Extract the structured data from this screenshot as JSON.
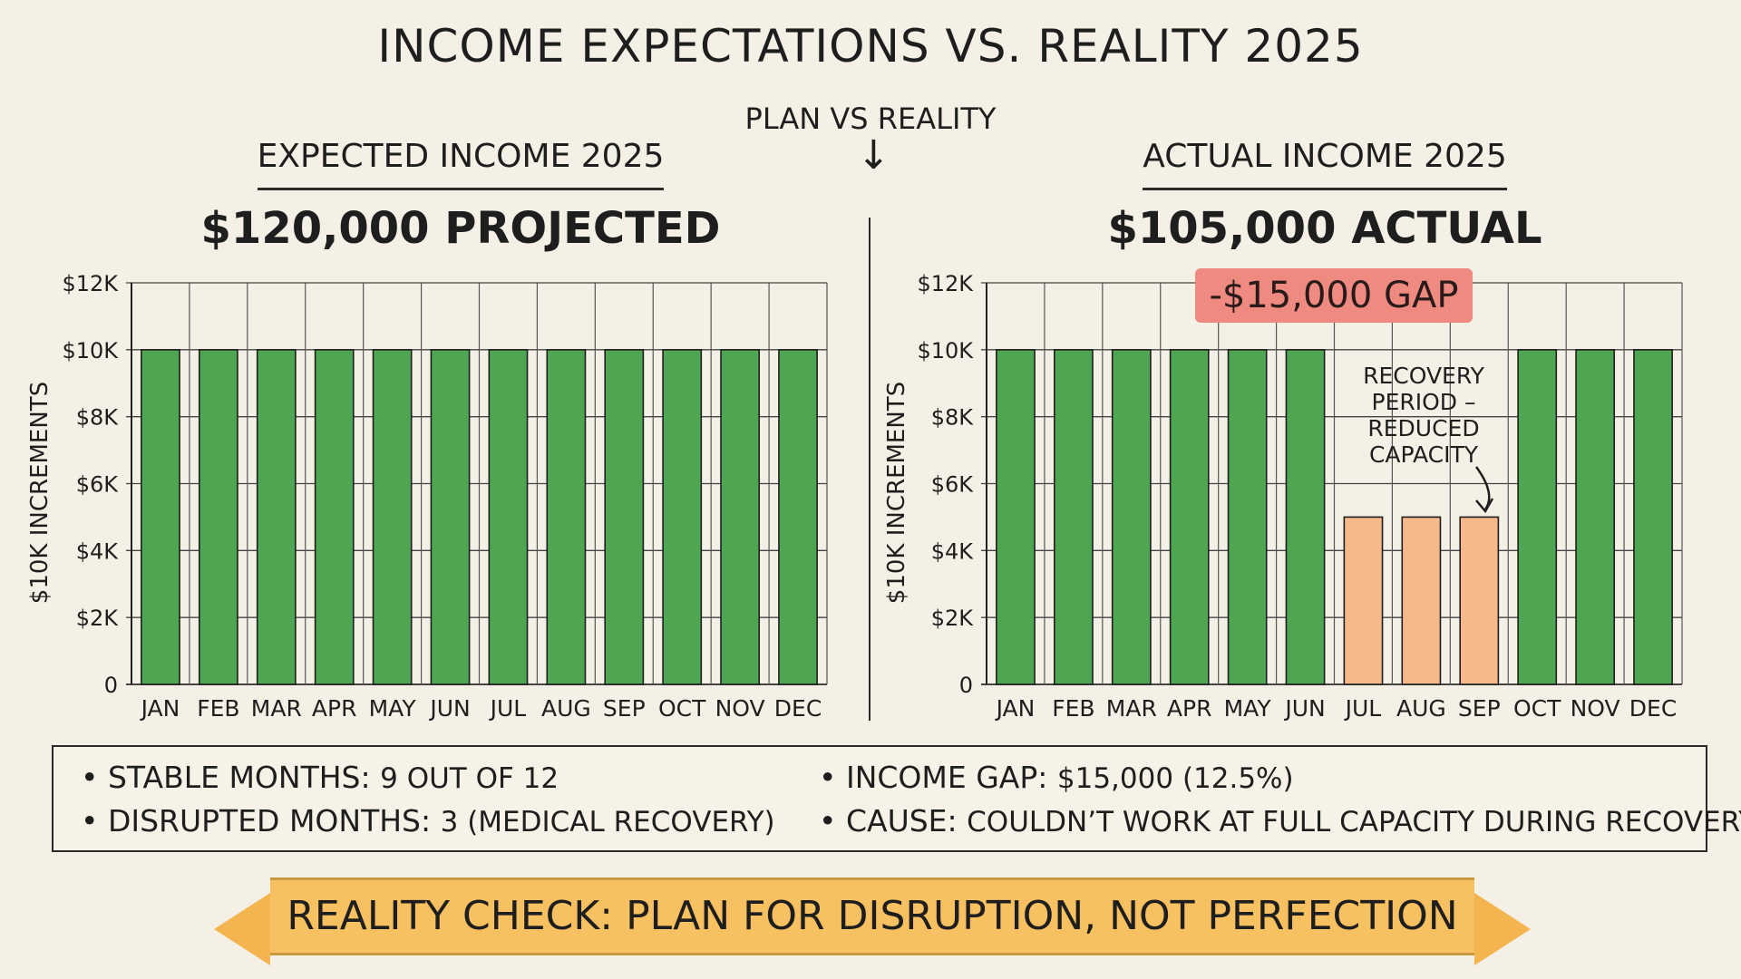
{
  "title": "INCOME EXPECTATIONS VS. REALITY 2025",
  "subtitle": "PLAN VS REALITY",
  "arrow_glyph": "↓",
  "left_panel": {
    "heading": "EXPECTED INCOME 2025",
    "amount": "$120,000 PROJECTED"
  },
  "right_panel": {
    "heading": "ACTUAL INCOME 2025",
    "amount": "$105,000 ACTUAL",
    "gap_badge": "-$15,000 GAP",
    "annotation_lines": [
      "RECOVERY",
      "PERIOD –",
      "REDUCED",
      "CAPACITY"
    ]
  },
  "colors": {
    "stable_bar": "#4fa652",
    "disrupted_bar": "#f7b98a",
    "gap_badge": "#ee8a80",
    "banner": "#f7c060",
    "background": "#f4f0e6"
  },
  "chart_data": [
    {
      "type": "bar",
      "title": "EXPECTED INCOME 2025",
      "ylabel": "$10K INCREMENTS",
      "categories": [
        "JAN",
        "FEB",
        "MAR",
        "APR",
        "MAY",
        "JUN",
        "JUL",
        "AUG",
        "SEP",
        "OCT",
        "NOV",
        "DEC"
      ],
      "values": [
        10000,
        10000,
        10000,
        10000,
        10000,
        10000,
        10000,
        10000,
        10000,
        10000,
        10000,
        10000
      ],
      "yticks": [
        "0",
        "$2K",
        "$4K",
        "$6K",
        "$8K",
        "$10K",
        "$12K"
      ],
      "ylim": [
        0,
        12000
      ],
      "grid": true
    },
    {
      "type": "bar",
      "title": "ACTUAL INCOME 2025",
      "ylabel": "$10K INCREMENTS",
      "categories": [
        "JAN",
        "FEB",
        "MAR",
        "APR",
        "MAY",
        "JUN",
        "JUL",
        "AUG",
        "SEP",
        "OCT",
        "NOV",
        "DEC"
      ],
      "values": [
        10000,
        10000,
        10000,
        10000,
        10000,
        10000,
        5000,
        5000,
        5000,
        10000,
        10000,
        10000
      ],
      "disrupted": [
        false,
        false,
        false,
        false,
        false,
        false,
        true,
        true,
        true,
        false,
        false,
        false
      ],
      "yticks": [
        "0",
        "$2K",
        "$4K",
        "$6K",
        "$8K",
        "$10K",
        "$12K"
      ],
      "ylim": [
        0,
        12000
      ],
      "grid": true
    }
  ],
  "stats": [
    {
      "label": "STABLE MONTHS:",
      "value": "9 OUT OF 12"
    },
    {
      "label": "DISRUPTED MONTHS:",
      "value": "3 (MEDICAL RECOVERY)"
    },
    {
      "label": "INCOME GAP:",
      "value": "$15,000 (12.5%)"
    },
    {
      "label": "CAUSE:",
      "value": "COULDN’T WORK AT FULL CAPACITY DURING RECOVERY"
    }
  ],
  "banner": {
    "bold": "REALITY CHECK:",
    "rest": "PLAN FOR DISRUPTION, NOT PERFECTION"
  }
}
